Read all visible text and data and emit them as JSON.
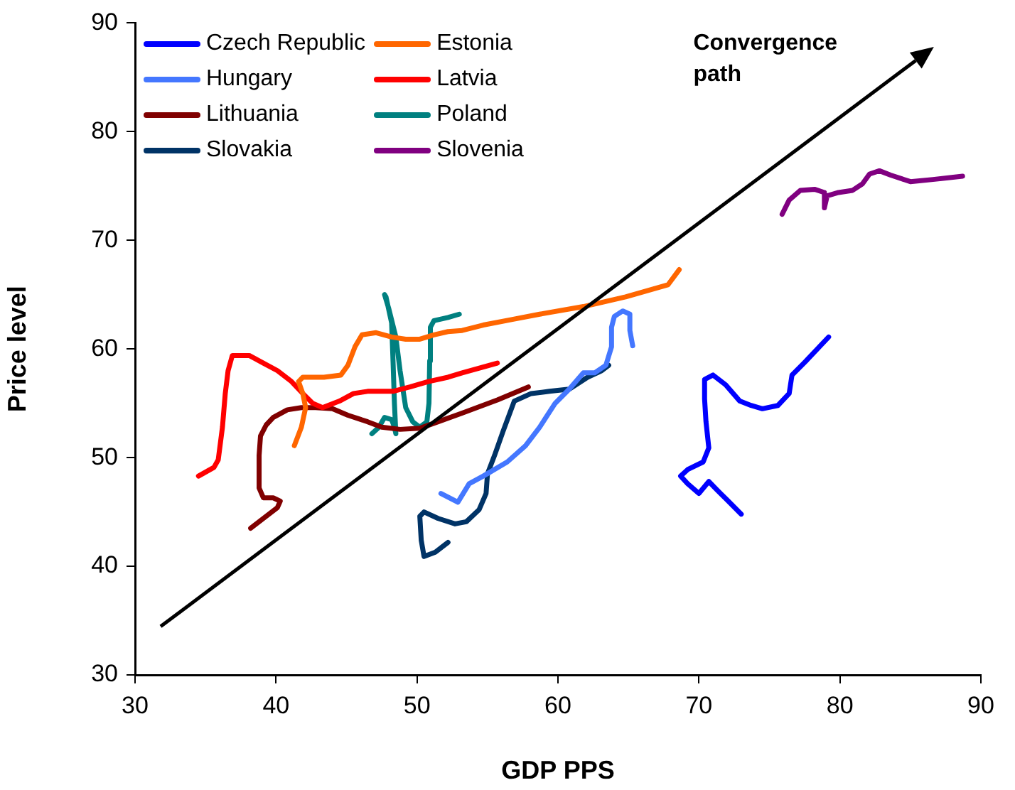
{
  "chart_data": {
    "type": "line",
    "xlabel": "GDP PPS",
    "ylabel": "Price level",
    "xlim": [
      30,
      90
    ],
    "xticks": [
      30,
      40,
      50,
      60,
      70,
      80,
      90
    ],
    "ylim": [
      30,
      90
    ],
    "yticks": [
      30,
      40,
      50,
      60,
      70,
      80,
      90
    ],
    "grid": false,
    "legend": "top left",
    "marker": "none",
    "line_style": "solid",
    "annotations": [
      "Convergence path"
    ],
    "series": [
      {
        "name": "Czech Republic",
        "color": "#0000ff",
        "x": [
          73.0,
          72.0,
          71.3,
          70.7,
          70.0,
          69.2,
          68.7,
          69.2,
          70.3,
          70.7,
          70.5,
          70.4,
          70.4,
          71.0,
          71.9,
          72.9,
          73.7,
          74.5,
          75.6,
          76.4,
          76.6,
          77.6,
          79.2
        ],
        "values": [
          44.8,
          46.1,
          47.0,
          47.8,
          46.7,
          47.6,
          48.3,
          48.9,
          49.6,
          50.9,
          53.3,
          55.4,
          57.2,
          57.6,
          56.7,
          55.2,
          54.8,
          54.5,
          54.8,
          55.9,
          57.6,
          58.9,
          61.1
        ]
      },
      {
        "name": "Estonia",
        "color": "#ff6600",
        "x": [
          41.3,
          41.8,
          42.1,
          41.9,
          41.6,
          41.9,
          43.4,
          44.6,
          45.1,
          45.6,
          46.1,
          47.1,
          48.2,
          49.2,
          50.2,
          51.2,
          52.2,
          53.2,
          54.7,
          56.7,
          58.7,
          61.8,
          64.8,
          67.8,
          68.6
        ],
        "values": [
          51.1,
          52.8,
          54.6,
          55.9,
          57.0,
          57.4,
          57.4,
          57.6,
          58.5,
          60.2,
          61.3,
          61.5,
          61.1,
          60.9,
          60.9,
          61.3,
          61.6,
          61.7,
          62.2,
          62.7,
          63.2,
          63.9,
          64.8,
          65.9,
          67.3
        ]
      },
      {
        "name": "Hungary",
        "color": "#4477ff",
        "x": [
          51.7,
          52.9,
          53.7,
          54.7,
          56.4,
          57.7,
          58.7,
          59.8,
          60.8,
          61.8,
          62.6,
          63.4,
          63.8,
          63.8,
          64.0,
          64.6,
          65.1,
          65.1,
          65.3
        ],
        "values": [
          46.7,
          45.9,
          47.6,
          48.3,
          49.6,
          51.1,
          52.8,
          55.0,
          56.3,
          57.8,
          57.8,
          58.5,
          60.2,
          62.0,
          63.0,
          63.5,
          63.2,
          61.7,
          60.3
        ]
      },
      {
        "name": "Latvia",
        "color": "#ff0000",
        "x": [
          34.5,
          35.6,
          35.9,
          36.2,
          36.4,
          36.6,
          36.9,
          38.1,
          39.1,
          40.1,
          41.1,
          41.9,
          42.6,
          43.3,
          44.5,
          45.5,
          46.5,
          48.3,
          49.5,
          50.8,
          52.2,
          53.2,
          55.7
        ],
        "values": [
          48.3,
          49.1,
          49.8,
          52.8,
          55.9,
          58.0,
          59.4,
          59.4,
          58.7,
          58.0,
          57.0,
          55.9,
          55.0,
          54.6,
          55.2,
          55.9,
          56.1,
          56.1,
          56.5,
          57.0,
          57.4,
          57.8,
          58.7
        ]
      },
      {
        "name": "Lithuania",
        "color": "#800000",
        "x": [
          38.2,
          39.1,
          40.1,
          40.3,
          39.8,
          39.1,
          38.8,
          38.8,
          38.9,
          39.3,
          39.8,
          40.8,
          41.8,
          42.8,
          44.0,
          45.1,
          46.5,
          47.5,
          48.8,
          50.2,
          51.5,
          53.2,
          55.7,
          57.9
        ],
        "values": [
          43.5,
          44.4,
          45.4,
          46.0,
          46.3,
          46.3,
          47.2,
          50.2,
          52.0,
          53.0,
          53.7,
          54.4,
          54.6,
          54.6,
          54.5,
          53.9,
          53.3,
          52.8,
          52.6,
          52.7,
          53.3,
          54.1,
          55.3,
          56.5
        ]
      },
      {
        "name": "Poland",
        "color": "#008080",
        "x": [
          46.8,
          47.3,
          47.7,
          48.2,
          48.4,
          48.5,
          48.4,
          48.3,
          48.2,
          47.8,
          47.7,
          48.0,
          48.5,
          48.8,
          49.2,
          49.7,
          50.2,
          50.7,
          50.85,
          50.9,
          50.95,
          51.2,
          52.2,
          53.0
        ],
        "values": [
          52.2,
          52.8,
          53.7,
          53.5,
          52.8,
          52.2,
          55.0,
          58.9,
          62.4,
          64.8,
          65.0,
          63.7,
          61.1,
          58.0,
          54.6,
          53.3,
          52.8,
          53.3,
          55.0,
          58.9,
          62.0,
          62.6,
          62.9,
          63.2
        ]
      },
      {
        "name": "Slovakia",
        "color": "#003366",
        "x": [
          52.2,
          51.3,
          50.5,
          50.3,
          50.2,
          50.5,
          51.5,
          52.7,
          53.5,
          54.4,
          54.9,
          55.0,
          55.5,
          56.1,
          56.9,
          58.1,
          59.4,
          60.8,
          62.1,
          63.1,
          63.6
        ],
        "values": [
          42.2,
          41.3,
          40.9,
          42.4,
          44.6,
          45.0,
          44.4,
          43.9,
          44.1,
          45.2,
          46.7,
          48.5,
          50.2,
          52.4,
          55.2,
          55.9,
          56.1,
          56.3,
          57.4,
          58.0,
          58.5
        ]
      },
      {
        "name": "Slovenia",
        "color": "#800080",
        "x": [
          75.9,
          76.4,
          77.2,
          78.2,
          78.9,
          78.9,
          79.1,
          79.9,
          80.9,
          81.6,
          82.1,
          82.8,
          83.6,
          85.0,
          86.6,
          88.7
        ],
        "values": [
          72.4,
          73.7,
          74.6,
          74.7,
          74.4,
          73.0,
          74.1,
          74.4,
          74.6,
          75.2,
          76.1,
          76.4,
          76.0,
          75.4,
          75.6,
          75.9
        ]
      }
    ]
  }
}
